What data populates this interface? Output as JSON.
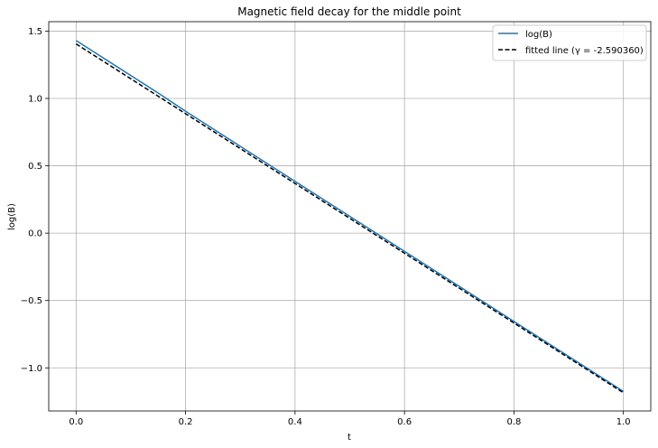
{
  "chart_data": {
    "type": "line",
    "title": "Magnetic field decay for the middle point",
    "xlabel": "t",
    "ylabel": "log(B)",
    "xlim": [
      -0.05,
      1.05
    ],
    "ylim": [
      -1.32,
      1.57
    ],
    "xticks": [
      0.0,
      0.2,
      0.4,
      0.6,
      0.8,
      1.0
    ],
    "xtick_labels": [
      "0.0",
      "0.2",
      "0.4",
      "0.6",
      "0.8",
      "1.0"
    ],
    "yticks": [
      -1.0,
      -0.5,
      0.0,
      0.5,
      1.0,
      1.5
    ],
    "ytick_labels": [
      "−1.0",
      "−0.5",
      "0.0",
      "0.5",
      "1.0",
      "1.5"
    ],
    "grid": true,
    "legend_position": "top-right",
    "series": [
      {
        "name": "log(B)",
        "color": "#1f77b4",
        "style": "solid",
        "x": [
          0.0,
          0.05,
          0.1,
          0.15,
          0.2,
          0.3,
          0.4,
          0.5,
          0.6,
          0.7,
          0.8,
          0.9,
          0.95,
          1.0
        ],
        "y": [
          1.43,
          1.3,
          1.17,
          1.04,
          0.905,
          0.645,
          0.385,
          0.125,
          -0.135,
          -0.395,
          -0.655,
          -0.915,
          -1.045,
          -1.175
        ]
      },
      {
        "name": "fitted line (γ = -2.590360)",
        "color": "#000000",
        "style": "dashed",
        "x": [
          0.0,
          1.0
        ],
        "y": [
          1.405,
          -1.185
        ]
      }
    ]
  }
}
